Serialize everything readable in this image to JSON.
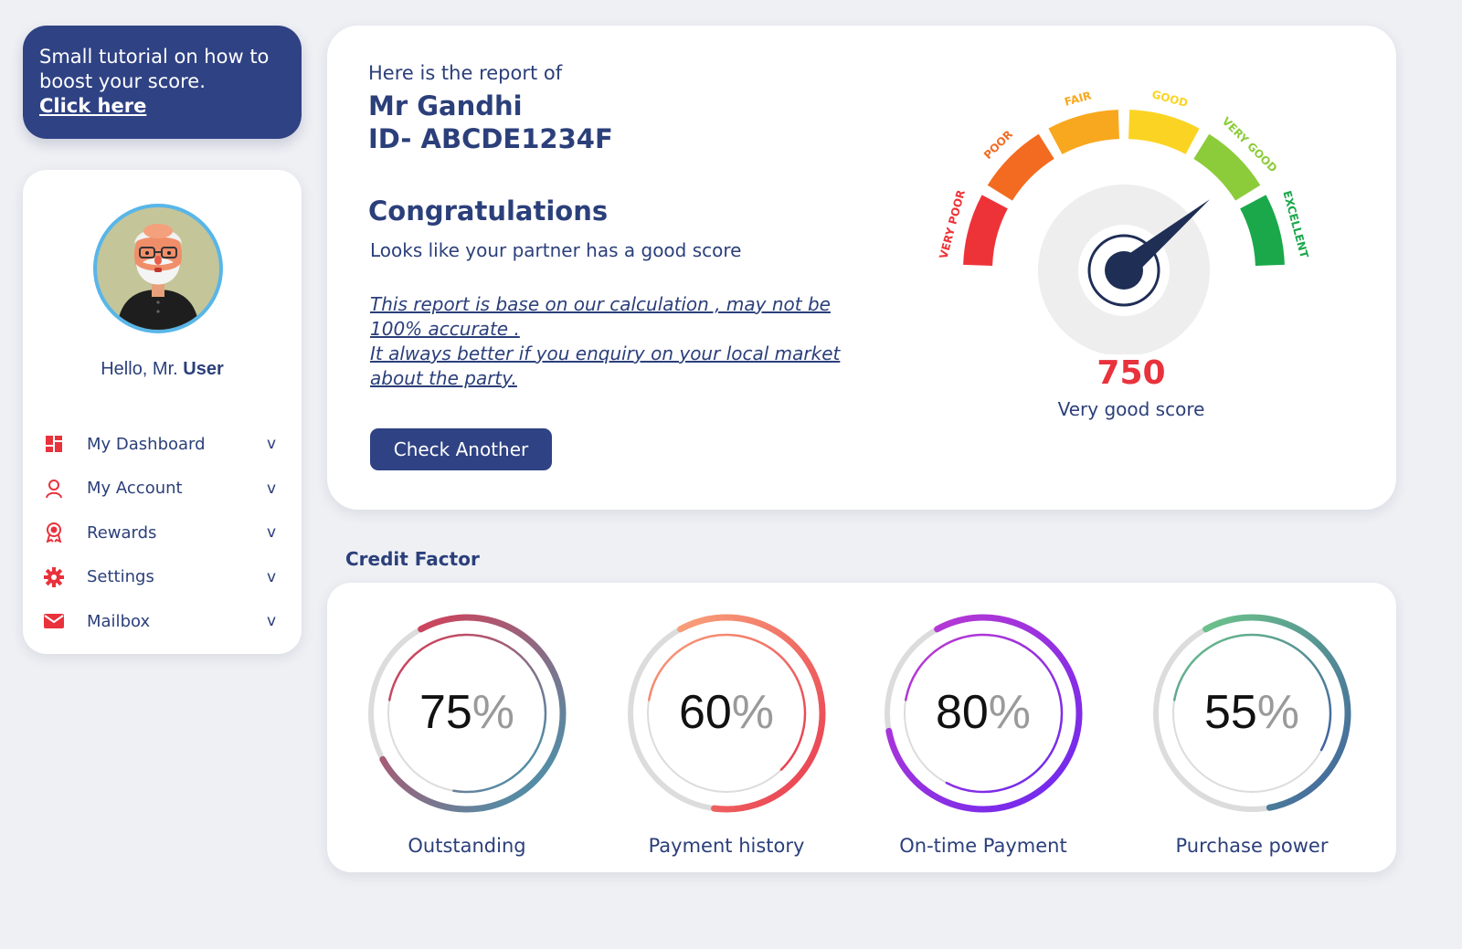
{
  "tutorial": {
    "text": "Small tutorial on how to boost your score.",
    "link": "Click here"
  },
  "profile": {
    "greeting_prefix": "Hello, Mr.",
    "greeting_name": "User",
    "avatar_icon": "avatar-portrait"
  },
  "menu": [
    {
      "label": "My Dashboard",
      "icon": "dashboard-icon",
      "chevron": "v"
    },
    {
      "label": "My Account",
      "icon": "user-icon",
      "chevron": "v"
    },
    {
      "label": "Rewards",
      "icon": "rewards-icon",
      "chevron": "v"
    },
    {
      "label": "Settings",
      "icon": "gear-icon",
      "chevron": "v"
    },
    {
      "label": "Mailbox",
      "icon": "mail-icon",
      "chevron": "v"
    }
  ],
  "report": {
    "intro": "Here is the report of",
    "name": "Mr Gandhi",
    "id": "ID- ABCDE1234F",
    "congrats": "Congratulations",
    "subtitle": "Looks like your partner has a good score",
    "disclaimer_1": "This report is base on our calculation , may not be 100% accurate .",
    "disclaimer_2": "It always better if you enquiry on your local market about the party.",
    "button": "Check Another"
  },
  "gauge": {
    "segments": [
      "VERY POOR",
      "POOR",
      "FAIR",
      "GOOD",
      "VERY GOOD",
      "EXCELLENT"
    ],
    "colors": [
      "#ee3338",
      "#f36b21",
      "#f8a81e",
      "#fbd423",
      "#8ccc3a",
      "#1aa84a"
    ],
    "score": "750",
    "score_label": "Very good score",
    "score_color": "#e8323c",
    "needle_fraction": 0.78
  },
  "credit_factor": {
    "title": "Credit Factor",
    "symbol": "%",
    "items": [
      {
        "value": 75,
        "label": "Outstanding",
        "colors": [
          "#e3364f",
          "#3b9bb4"
        ]
      },
      {
        "value": 60,
        "label": "Payment history",
        "colors": [
          "#f8a07a",
          "#e8394f"
        ]
      },
      {
        "value": 80,
        "label": "On-time Payment",
        "colors": [
          "#c13ad0",
          "#6a28f0"
        ]
      },
      {
        "value": 55,
        "label": "Purchase power",
        "colors": [
          "#6cc389",
          "#3f5fa0"
        ]
      }
    ]
  }
}
